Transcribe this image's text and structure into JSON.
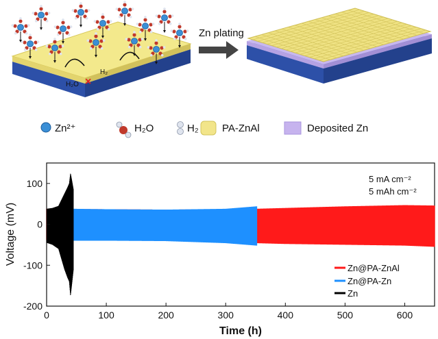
{
  "schematic": {
    "arrow_label": "Zn plating",
    "water_label": "H₂O",
    "h2_label": "H₂",
    "block_mark": "×"
  },
  "legend_top": [
    {
      "icon": "zn-ion-icon",
      "label": "Zn²⁺",
      "color": "#3b8fd6"
    },
    {
      "icon": "water-molecule-icon",
      "label": "H₂O",
      "color": "#c0392b"
    },
    {
      "icon": "h2-molecule-icon",
      "label": "H₂",
      "color": "#aab4c8"
    },
    {
      "icon": "pa-znal-icon",
      "label": "PA-ZnAl",
      "color": "#f2e58a"
    },
    {
      "icon": "deposited-zn-icon",
      "label": "Deposited Zn",
      "color": "#c6b3ee"
    }
  ],
  "chart_data": {
    "type": "line",
    "xlabel": "Time (h)",
    "ylabel": "Voltage (mV)",
    "xlim": [
      0,
      650
    ],
    "ylim": [
      -200,
      150
    ],
    "xticks": [
      0,
      100,
      200,
      300,
      400,
      500,
      600
    ],
    "yticks": [
      -200,
      -100,
      0,
      100
    ],
    "annotations": [
      "5 mA cm⁻²",
      "5 mAh cm⁻²"
    ],
    "legend_position": "bottom-right",
    "series": [
      {
        "name": "Zn@PA-ZnAl",
        "color": "#ff1a1a",
        "x": [
          0,
          100,
          200,
          300,
          350,
          400,
          500,
          600,
          650
        ],
        "upper": [
          38,
          37,
          36,
          37,
          38,
          40,
          44,
          47,
          46
        ],
        "lower": [
          -38,
          -38,
          -39,
          -42,
          -46,
          -48,
          -50,
          -52,
          -55
        ]
      },
      {
        "name": "Zn@PA-Zn",
        "color": "#1e90ff",
        "x": [
          45,
          100,
          200,
          300,
          352
        ],
        "upper": [
          38,
          37,
          36,
          38,
          44
        ],
        "lower": [
          -40,
          -40,
          -41,
          -46,
          -52
        ]
      },
      {
        "name": "Zn",
        "color": "#000000",
        "x": [
          0,
          10,
          20,
          25,
          30,
          35,
          38,
          40,
          42,
          45
        ],
        "upper": [
          38,
          40,
          45,
          60,
          75,
          90,
          100,
          125,
          110,
          85
        ],
        "lower": [
          -45,
          -50,
          -60,
          -85,
          -110,
          -130,
          -140,
          -175,
          -150,
          -110
        ]
      }
    ]
  }
}
